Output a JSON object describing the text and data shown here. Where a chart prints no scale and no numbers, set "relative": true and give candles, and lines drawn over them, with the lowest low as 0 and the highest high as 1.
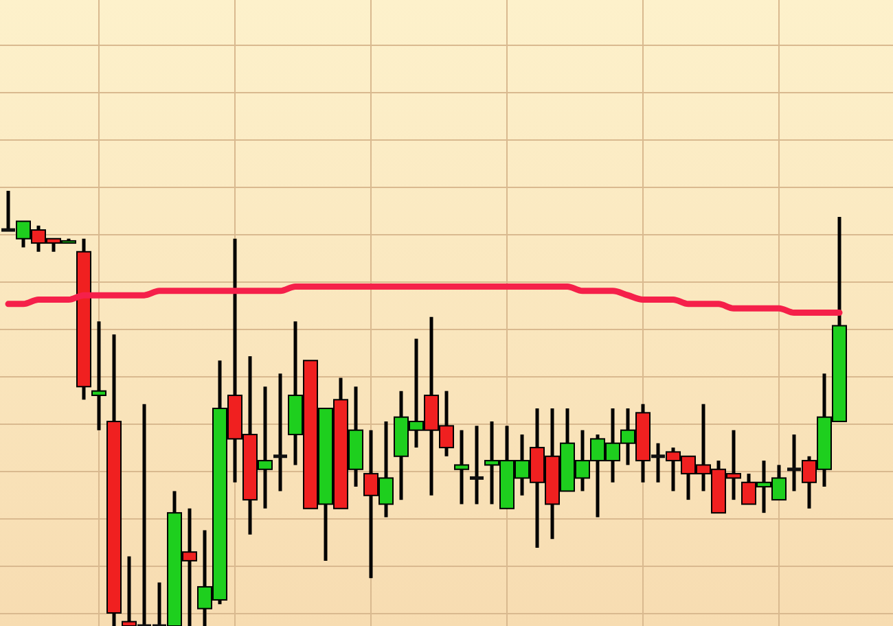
{
  "chart_data": {
    "type": "candlestick",
    "relative": true,
    "grid": true,
    "categories": [
      null,
      null,
      null,
      null,
      null,
      null,
      null,
      null,
      null,
      null,
      null,
      null,
      null,
      null,
      null,
      null,
      null,
      null,
      null,
      null,
      null,
      null,
      null,
      null,
      null,
      null,
      null,
      null,
      null,
      null,
      null,
      null,
      null,
      null,
      null,
      null,
      null,
      null,
      null,
      null,
      null,
      null,
      null,
      null,
      null,
      null,
      null,
      null,
      null,
      null,
      null,
      null,
      null,
      null,
      null,
      null
    ],
    "ohlc": [
      [
        0.91,
        1,
        0.91,
        0.91
      ],
      [
        0.89,
        0.93,
        0.87,
        0.93
      ],
      [
        0.91,
        0.92,
        0.86,
        0.88
      ],
      [
        0.89,
        0.89,
        0.86,
        0.88
      ],
      [
        0.88,
        0.89,
        0.88,
        0.885
      ],
      [
        0.86,
        0.89,
        0.52,
        0.55
      ],
      [
        0.53,
        0.7,
        0.45,
        0.54
      ],
      [
        0.47,
        0.67,
        0,
        0.03
      ],
      [
        0.01,
        0.16,
        0,
        0
      ],
      [
        0,
        0.51,
        0,
        0
      ],
      [
        0,
        0.1,
        0,
        0
      ],
      [
        0,
        0.31,
        0,
        0.26
      ],
      [
        0.17,
        0.27,
        0,
        0.15
      ],
      [
        0.04,
        0.22,
        0,
        0.09
      ],
      [
        0.06,
        0.61,
        0.05,
        0.5
      ],
      [
        0.53,
        0.89,
        0.33,
        0.43
      ],
      [
        0.44,
        0.62,
        0.21,
        0.29
      ],
      [
        0.36,
        0.55,
        0.27,
        0.38
      ],
      [
        0.39,
        0.58,
        0.31,
        0.39
      ],
      [
        0.44,
        0.7,
        0.37,
        0.53
      ],
      [
        0.61,
        0.61,
        0.27,
        0.27
      ],
      [
        0.28,
        0.5,
        0.15,
        0.5
      ],
      [
        0.52,
        0.57,
        0.27,
        0.27
      ],
      [
        0.36,
        0.55,
        0.32,
        0.45
      ],
      [
        0.35,
        0.45,
        0.11,
        0.3
      ],
      [
        0.28,
        0.47,
        0.25,
        0.34
      ],
      [
        0.39,
        0.54,
        0.29,
        0.48
      ],
      [
        0.45,
        0.66,
        0.41,
        0.47
      ],
      [
        0.53,
        0.71,
        0.3,
        0.45
      ],
      [
        0.46,
        0.54,
        0.39,
        0.41
      ],
      [
        0.36,
        0.45,
        0.28,
        0.37
      ],
      [
        0.34,
        0.46,
        0.28,
        0.34
      ],
      [
        0.37,
        0.47,
        0.28,
        0.38
      ],
      [
        0.27,
        0.46,
        0.27,
        0.38
      ],
      [
        0.34,
        0.44,
        0.3,
        0.38
      ],
      [
        0.41,
        0.5,
        0.18,
        0.33
      ],
      [
        0.39,
        0.5,
        0.2,
        0.28
      ],
      [
        0.31,
        0.5,
        0.31,
        0.42
      ],
      [
        0.34,
        0.45,
        0.31,
        0.38
      ],
      [
        0.38,
        0.44,
        0.25,
        0.43
      ],
      [
        0.38,
        0.5,
        0.33,
        0.42
      ],
      [
        0.42,
        0.5,
        0.37,
        0.45
      ],
      [
        0.49,
        0.51,
        0.33,
        0.38
      ],
      [
        0.39,
        0.42,
        0.33,
        0.39
      ],
      [
        0.4,
        0.41,
        0.31,
        0.38
      ],
      [
        0.39,
        0.39,
        0.29,
        0.35
      ],
      [
        0.37,
        0.51,
        0.31,
        0.35
      ],
      [
        0.36,
        0.38,
        0.26,
        0.26
      ],
      [
        0.35,
        0.45,
        0.29,
        0.34
      ],
      [
        0.33,
        0.35,
        0.28,
        0.28
      ],
      [
        0.32,
        0.38,
        0.26,
        0.33
      ],
      [
        0.29,
        0.37,
        0.29,
        0.34
      ],
      [
        0.36,
        0.44,
        0.31,
        0.36
      ],
      [
        0.38,
        0.39,
        0.27,
        0.33
      ],
      [
        0.36,
        0.58,
        0.32,
        0.48
      ],
      [
        0.47,
        0.94,
        0.47,
        0.69
      ]
    ],
    "colors": [
      "#111111",
      "#1ecf1e",
      "#f02020",
      "#f02020",
      "#1ecf1e",
      "#f02020",
      "#1ecf1e",
      "#f02020",
      "#f02020",
      "#111111",
      "#111111",
      "#1ecf1e",
      "#f02020",
      "#1ecf1e",
      "#1ecf1e",
      "#f02020",
      "#f02020",
      "#1ecf1e",
      "#111111",
      "#1ecf1e",
      "#f02020",
      "#1ecf1e",
      "#f02020",
      "#1ecf1e",
      "#f02020",
      "#1ecf1e",
      "#1ecf1e",
      "#1ecf1e",
      "#f02020",
      "#f02020",
      "#1ecf1e",
      "#111111",
      "#1ecf1e",
      "#1ecf1e",
      "#1ecf1e",
      "#f02020",
      "#f02020",
      "#1ecf1e",
      "#1ecf1e",
      "#1ecf1e",
      "#1ecf1e",
      "#1ecf1e",
      "#f02020",
      "#111111",
      "#f02020",
      "#f02020",
      "#f02020",
      "#f02020",
      "#f02020",
      "#f02020",
      "#1ecf1e",
      "#1ecf1e",
      "#111111",
      "#f02020",
      "#1ecf1e",
      "#1ecf1e"
    ],
    "series": [
      {
        "type": "line",
        "color": "#f5204a",
        "values": [
          0.74,
          0.74,
          0.75,
          0.75,
          0.75,
          0.76,
          0.76,
          0.76,
          0.76,
          0.76,
          0.77,
          0.77,
          0.77,
          0.77,
          0.77,
          0.77,
          0.77,
          0.77,
          0.77,
          0.78,
          0.78,
          0.78,
          0.78,
          0.78,
          0.78,
          0.78,
          0.78,
          0.78,
          0.78,
          0.78,
          0.78,
          0.78,
          0.78,
          0.78,
          0.78,
          0.78,
          0.78,
          0.78,
          0.77,
          0.77,
          0.77,
          0.76,
          0.75,
          0.75,
          0.75,
          0.74,
          0.74,
          0.74,
          0.73,
          0.73,
          0.73,
          0.73,
          0.72,
          0.72,
          0.72,
          0.72
        ]
      }
    ]
  }
}
